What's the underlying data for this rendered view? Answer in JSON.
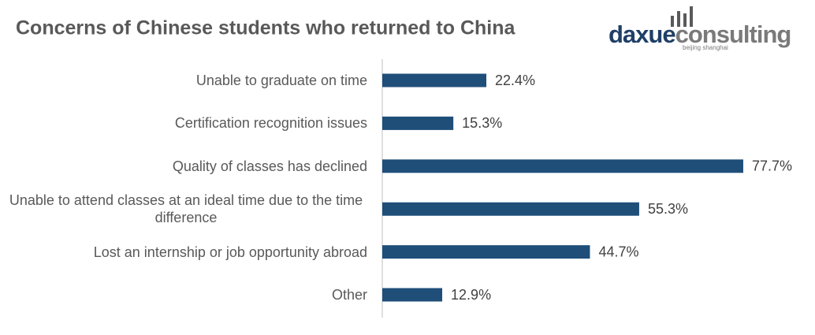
{
  "chart_data": {
    "type": "bar",
    "orientation": "horizontal",
    "title": "Concerns of Chinese students who returned to China",
    "categories": [
      "Unable to graduate on time",
      "Certification recognition issues",
      "Quality of classes has declined",
      "Unable to attend classes at an ideal time due to the time difference",
      "Lost an internship or job opportunity abroad",
      "Other"
    ],
    "values": [
      22.4,
      15.3,
      77.7,
      55.3,
      44.7,
      12.9
    ],
    "value_labels": [
      "22.4%",
      "15.3%",
      "77.7%",
      "55.3%",
      "44.7%",
      "12.9%"
    ],
    "color": "#1f4e79"
  },
  "logo": {
    "brand": "daxue",
    "brand_suffix": "consulting",
    "tagline": "beijing shanghai"
  }
}
